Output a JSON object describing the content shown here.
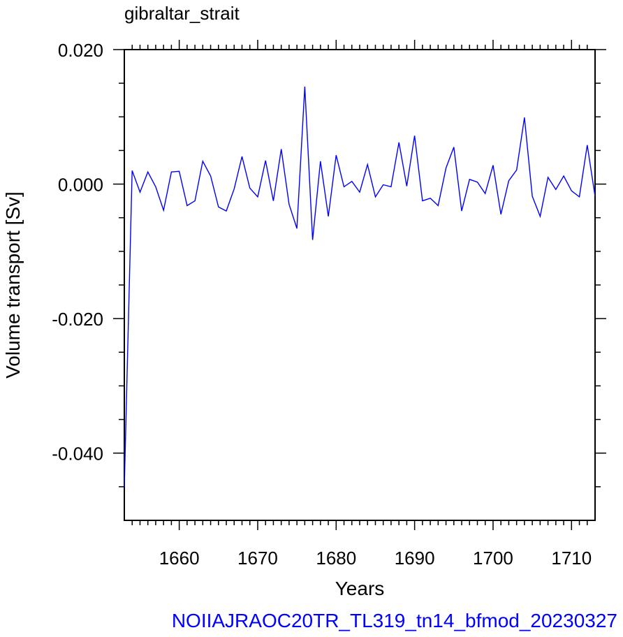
{
  "chart_data": {
    "type": "line",
    "title": "gibraltar_strait",
    "xlabel": "Years",
    "ylabel": "Volume transport [Sv]",
    "footer": "NOIIAJRAOC20TR_TL319_tn14_bfmod_20230327",
    "xlim": [
      1653,
      1713
    ],
    "ylim": [
      -0.05,
      0.02
    ],
    "xticks": [
      1660,
      1670,
      1680,
      1690,
      1700,
      1710
    ],
    "xtick_labels": [
      "1660",
      "1670",
      "1680",
      "1690",
      "1700",
      "1710"
    ],
    "yticks": [
      0.02,
      0.0,
      -0.02,
      -0.04
    ],
    "ytick_labels": [
      "0.020",
      "0.000",
      "-0.020",
      "-0.040"
    ],
    "grid": false,
    "line_color": "#0000ff",
    "series": [
      {
        "x": [
          1653,
          1654,
          1655,
          1656,
          1657,
          1658,
          1659,
          1660,
          1661,
          1662,
          1663,
          1664,
          1665,
          1666,
          1667,
          1668,
          1669,
          1670,
          1671,
          1672,
          1673,
          1674,
          1675,
          1676,
          1677,
          1678,
          1679,
          1680,
          1681,
          1682,
          1683,
          1684,
          1685,
          1686,
          1687,
          1688,
          1689,
          1690,
          1691,
          1692,
          1693,
          1694,
          1695,
          1696,
          1697,
          1698,
          1699,
          1700,
          1701,
          1702,
          1703,
          1704,
          1705,
          1706,
          1707,
          1708,
          1709,
          1710,
          1711,
          1712,
          1713
        ],
        "values": [
          -0.045,
          0.002,
          -0.0012,
          0.0018,
          -0.0004,
          -0.0039,
          0.0018,
          0.0019,
          -0.0032,
          -0.0025,
          0.0034,
          0.0012,
          -0.0034,
          -0.004,
          -0.0007,
          0.0041,
          -0.0006,
          -0.0019,
          0.0035,
          -0.0025,
          0.0052,
          -0.003,
          -0.0066,
          0.0145,
          -0.0083,
          0.0034,
          -0.0048,
          0.0043,
          -0.0004,
          0.0004,
          -0.0012,
          0.0029,
          -0.0019,
          -0.0001,
          -0.0004,
          0.0062,
          -0.0003,
          0.0072,
          -0.0025,
          -0.0021,
          -0.0032,
          0.0024,
          0.0055,
          -0.004,
          0.0007,
          0.0003,
          -0.0014,
          0.0028,
          -0.0045,
          0.0005,
          0.0021,
          0.0099,
          -0.0018,
          -0.0048,
          0.001,
          -0.0008,
          0.0012,
          -0.001,
          -0.0019,
          0.0058,
          -0.0018
        ]
      }
    ]
  }
}
